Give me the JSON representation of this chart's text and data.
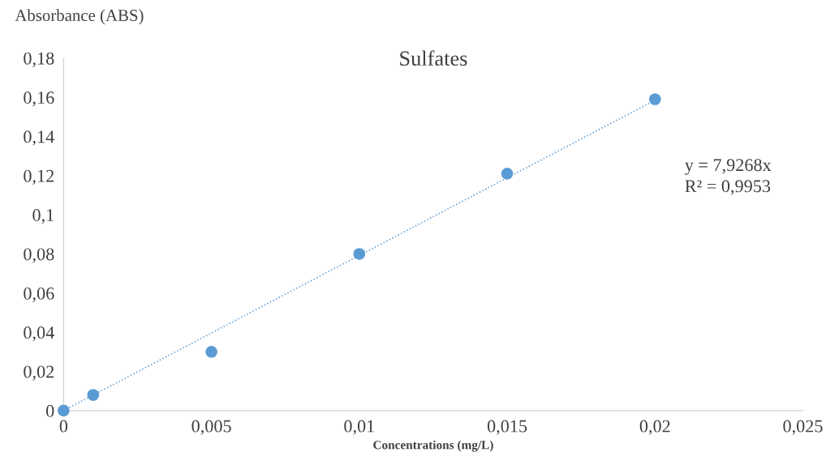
{
  "chart_data": {
    "type": "scatter",
    "title": "Sulfates",
    "xlabel": "Concentrations (mg/L)",
    "ylabel": "Absorbance (ABS)",
    "xlim": [
      0,
      0.025
    ],
    "ylim": [
      0,
      0.18
    ],
    "xticks": [
      0,
      {
        "value": 0.005,
        "label": "0,005"
      },
      {
        "value": 0.01,
        "label": "0,01"
      },
      {
        "value": 0.015,
        "label": "0,015"
      },
      {
        "value": 0.02,
        "label": "0,02"
      },
      {
        "value": 0.025,
        "label": "0,025"
      }
    ],
    "yticks": [
      0,
      {
        "value": 0.02,
        "label": "0,02"
      },
      {
        "value": 0.04,
        "label": "0,04"
      },
      {
        "value": 0.06,
        "label": "0,06"
      },
      {
        "value": 0.08,
        "label": "0,08"
      },
      {
        "value": 0.1,
        "label": "0,1"
      },
      {
        "value": 0.12,
        "label": "0,12"
      },
      {
        "value": 0.14,
        "label": "0,14"
      },
      {
        "value": 0.16,
        "label": "0,16"
      },
      {
        "value": 0.18,
        "label": "0,18"
      }
    ],
    "grid": false,
    "series": [
      {
        "color": "#5b9bd5",
        "marker": "circle",
        "x": [
          0,
          0.001,
          0.005,
          0.01,
          0.015,
          0.02
        ],
        "values": [
          0,
          0.008,
          0.03,
          0.08,
          0.121,
          0.159
        ]
      },
      {
        "type": "line",
        "color": "#5b9bd5",
        "line_style": "dotted",
        "marker": "none",
        "x": [
          0,
          0.02
        ],
        "values": [
          0,
          0.1585
        ]
      }
    ],
    "annotations": [
      "y = 7,9268x",
      "R² = 0,9953"
    ]
  }
}
